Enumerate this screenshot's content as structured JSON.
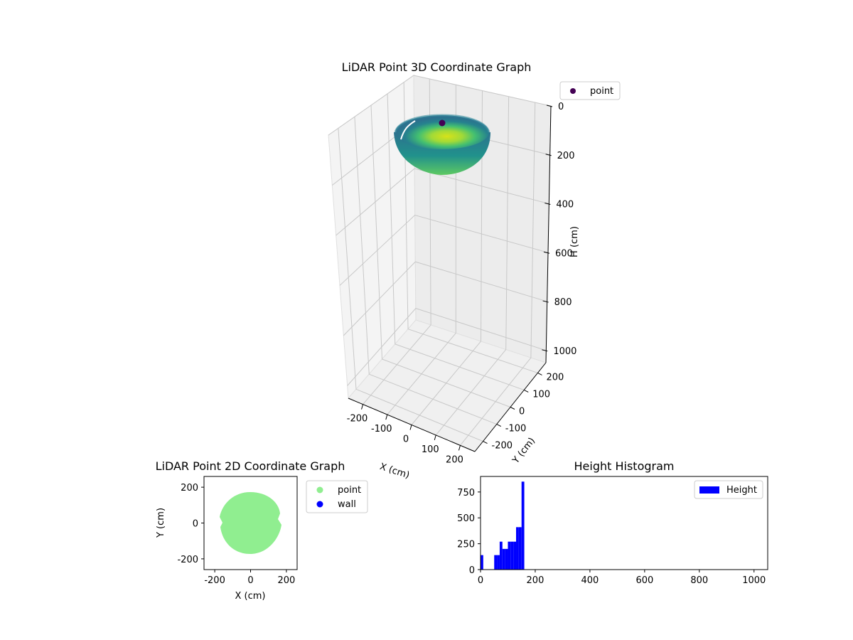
{
  "chart_data": [
    {
      "type": "scatter",
      "title": "LiDAR Point 3D Coordinate Graph",
      "xlabel": "X (cm)",
      "ylabel": "Y (cm)",
      "zlabel": "H (cm)",
      "x_ticks": [
        -200,
        -100,
        0,
        100,
        200
      ],
      "y_ticks": [
        -200,
        -100,
        0,
        100,
        200
      ],
      "z_ticks": [
        0,
        200,
        400,
        600,
        800,
        1000
      ],
      "xlim": [
        -260,
        260
      ],
      "ylim": [
        -260,
        260
      ],
      "zlim": [
        1050,
        0
      ],
      "z_inverted": true,
      "colormap": "viridis",
      "legend": {
        "position": "top-right outside",
        "entries": [
          {
            "label": "point",
            "color": "#440154"
          }
        ]
      },
      "series": [
        {
          "name": "point",
          "shape": "hemispherical bowl",
          "bowl_radius_cm": 170,
          "rim_height_cm": 0,
          "bottom_height_cm": 160,
          "color_by": "height",
          "highlight_point": {
            "x": 0,
            "y": 0,
            "h": 0,
            "color": "#440154"
          }
        }
      ]
    },
    {
      "type": "scatter",
      "title": "LiDAR Point 2D Coordinate Graph",
      "xlabel": "X (cm)",
      "ylabel": "Y (cm)",
      "x_ticks": [
        -200,
        0,
        200
      ],
      "y_ticks": [
        -200,
        0,
        200
      ],
      "xlim": [
        -260,
        260
      ],
      "ylim": [
        -260,
        260
      ],
      "legend": {
        "position": "right outside",
        "entries": [
          {
            "label": "point",
            "color": "#90ee90"
          },
          {
            "label": "wall",
            "color": "#0000ff"
          }
        ]
      },
      "series": [
        {
          "name": "point",
          "color": "#90ee90",
          "shape": "disk",
          "radius_cm": 170
        },
        {
          "name": "wall",
          "color": "#0000ff",
          "values": []
        }
      ]
    },
    {
      "type": "bar",
      "title": "Height Histogram",
      "xlabel": "",
      "ylabel": "",
      "x_ticks": [
        0,
        200,
        400,
        600,
        800,
        1000
      ],
      "y_ticks": [
        0,
        250,
        500,
        750
      ],
      "xlim": [
        0,
        1050
      ],
      "ylim": [
        0,
        900
      ],
      "color": "#0000ff",
      "legend": {
        "position": "top-right",
        "entries": [
          {
            "label": "Height",
            "color": "#0000ff"
          }
        ]
      },
      "bins": [
        {
          "x0": 0,
          "x1": 10,
          "count": 140
        },
        {
          "x0": 10,
          "x1": 20,
          "count": 0
        },
        {
          "x0": 20,
          "x1": 30,
          "count": 0
        },
        {
          "x0": 30,
          "x1": 40,
          "count": 0
        },
        {
          "x0": 40,
          "x1": 50,
          "count": 0
        },
        {
          "x0": 50,
          "x1": 60,
          "count": 140
        },
        {
          "x0": 60,
          "x1": 70,
          "count": 140
        },
        {
          "x0": 70,
          "x1": 80,
          "count": 270
        },
        {
          "x0": 80,
          "x1": 90,
          "count": 200
        },
        {
          "x0": 90,
          "x1": 100,
          "count": 200
        },
        {
          "x0": 100,
          "x1": 110,
          "count": 270
        },
        {
          "x0": 110,
          "x1": 120,
          "count": 270
        },
        {
          "x0": 120,
          "x1": 130,
          "count": 270
        },
        {
          "x0": 130,
          "x1": 140,
          "count": 410
        },
        {
          "x0": 140,
          "x1": 150,
          "count": 410
        },
        {
          "x0": 150,
          "x1": 160,
          "count": 850
        }
      ]
    }
  ]
}
